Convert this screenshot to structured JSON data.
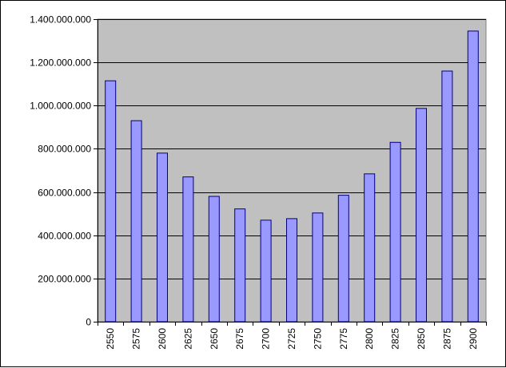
{
  "chart_data": {
    "type": "bar",
    "title": "",
    "xlabel": "",
    "ylabel": "",
    "categories": [
      "2550",
      "2575",
      "2600",
      "2625",
      "2650",
      "2675",
      "2700",
      "2725",
      "2750",
      "2775",
      "2800",
      "2825",
      "2850",
      "2875",
      "2900"
    ],
    "values": [
      1115000000,
      930000000,
      780000000,
      670000000,
      580000000,
      522000000,
      470000000,
      477000000,
      503000000,
      585000000,
      684000000,
      830000000,
      987000000,
      1160000000,
      1345000000
    ],
    "ylim": [
      0,
      1400000000
    ],
    "yticks": [
      0,
      200000000,
      400000000,
      600000000,
      800000000,
      1000000000,
      1200000000,
      1400000000
    ],
    "ytick_labels": [
      "0",
      "200.000.000",
      "400.000.000",
      "600.000.000",
      "800.000.000",
      "1.000.000.000",
      "1.200.000.000",
      "1.400.000.000"
    ],
    "grid": true,
    "legend": "none",
    "colors": {
      "plot_background": "#c0c0c0",
      "bar_fill": "#9999ff",
      "bar_stroke": "#000080",
      "gridline": "#000000"
    }
  }
}
